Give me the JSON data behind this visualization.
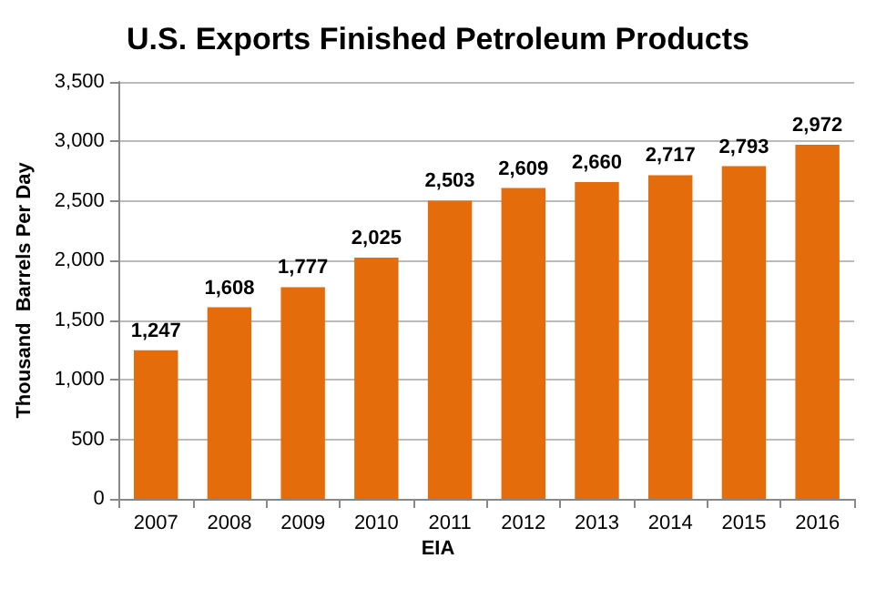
{
  "chart_data": {
    "type": "bar",
    "title": "U.S. Exports Finished Petroleum Products",
    "ylabel": "Thousand  Barrels Per Day",
    "categories": [
      "2007",
      "2008",
      "2009",
      "2010",
      "2011",
      "2012",
      "2013",
      "2014",
      "2015",
      "2016"
    ],
    "values": [
      1247,
      1608,
      1777,
      2025,
      2503,
      2609,
      2660,
      2717,
      2793,
      2972
    ],
    "color": "#e46c0a",
    "value_labels": [
      "1,247",
      "1,608",
      "1,777",
      "2,025",
      "2,503",
      "2,609",
      "2,660",
      "2,717",
      "2,793",
      "2,972"
    ],
    "ylim": [
      0,
      3500
    ],
    "yticks": [
      0,
      500,
      {
        "value": 1000,
        "label": "1,000"
      },
      {
        "value": 1500,
        "label": "1,500"
      },
      {
        "value": 2000,
        "label": "2,000"
      },
      {
        "value": 2500,
        "label": "2,500"
      },
      {
        "value": 3000,
        "label": "3,000"
      },
      {
        "value": 3500,
        "label": "3,500"
      }
    ],
    "grid": "y",
    "annotations": [
      "EIA"
    ]
  }
}
